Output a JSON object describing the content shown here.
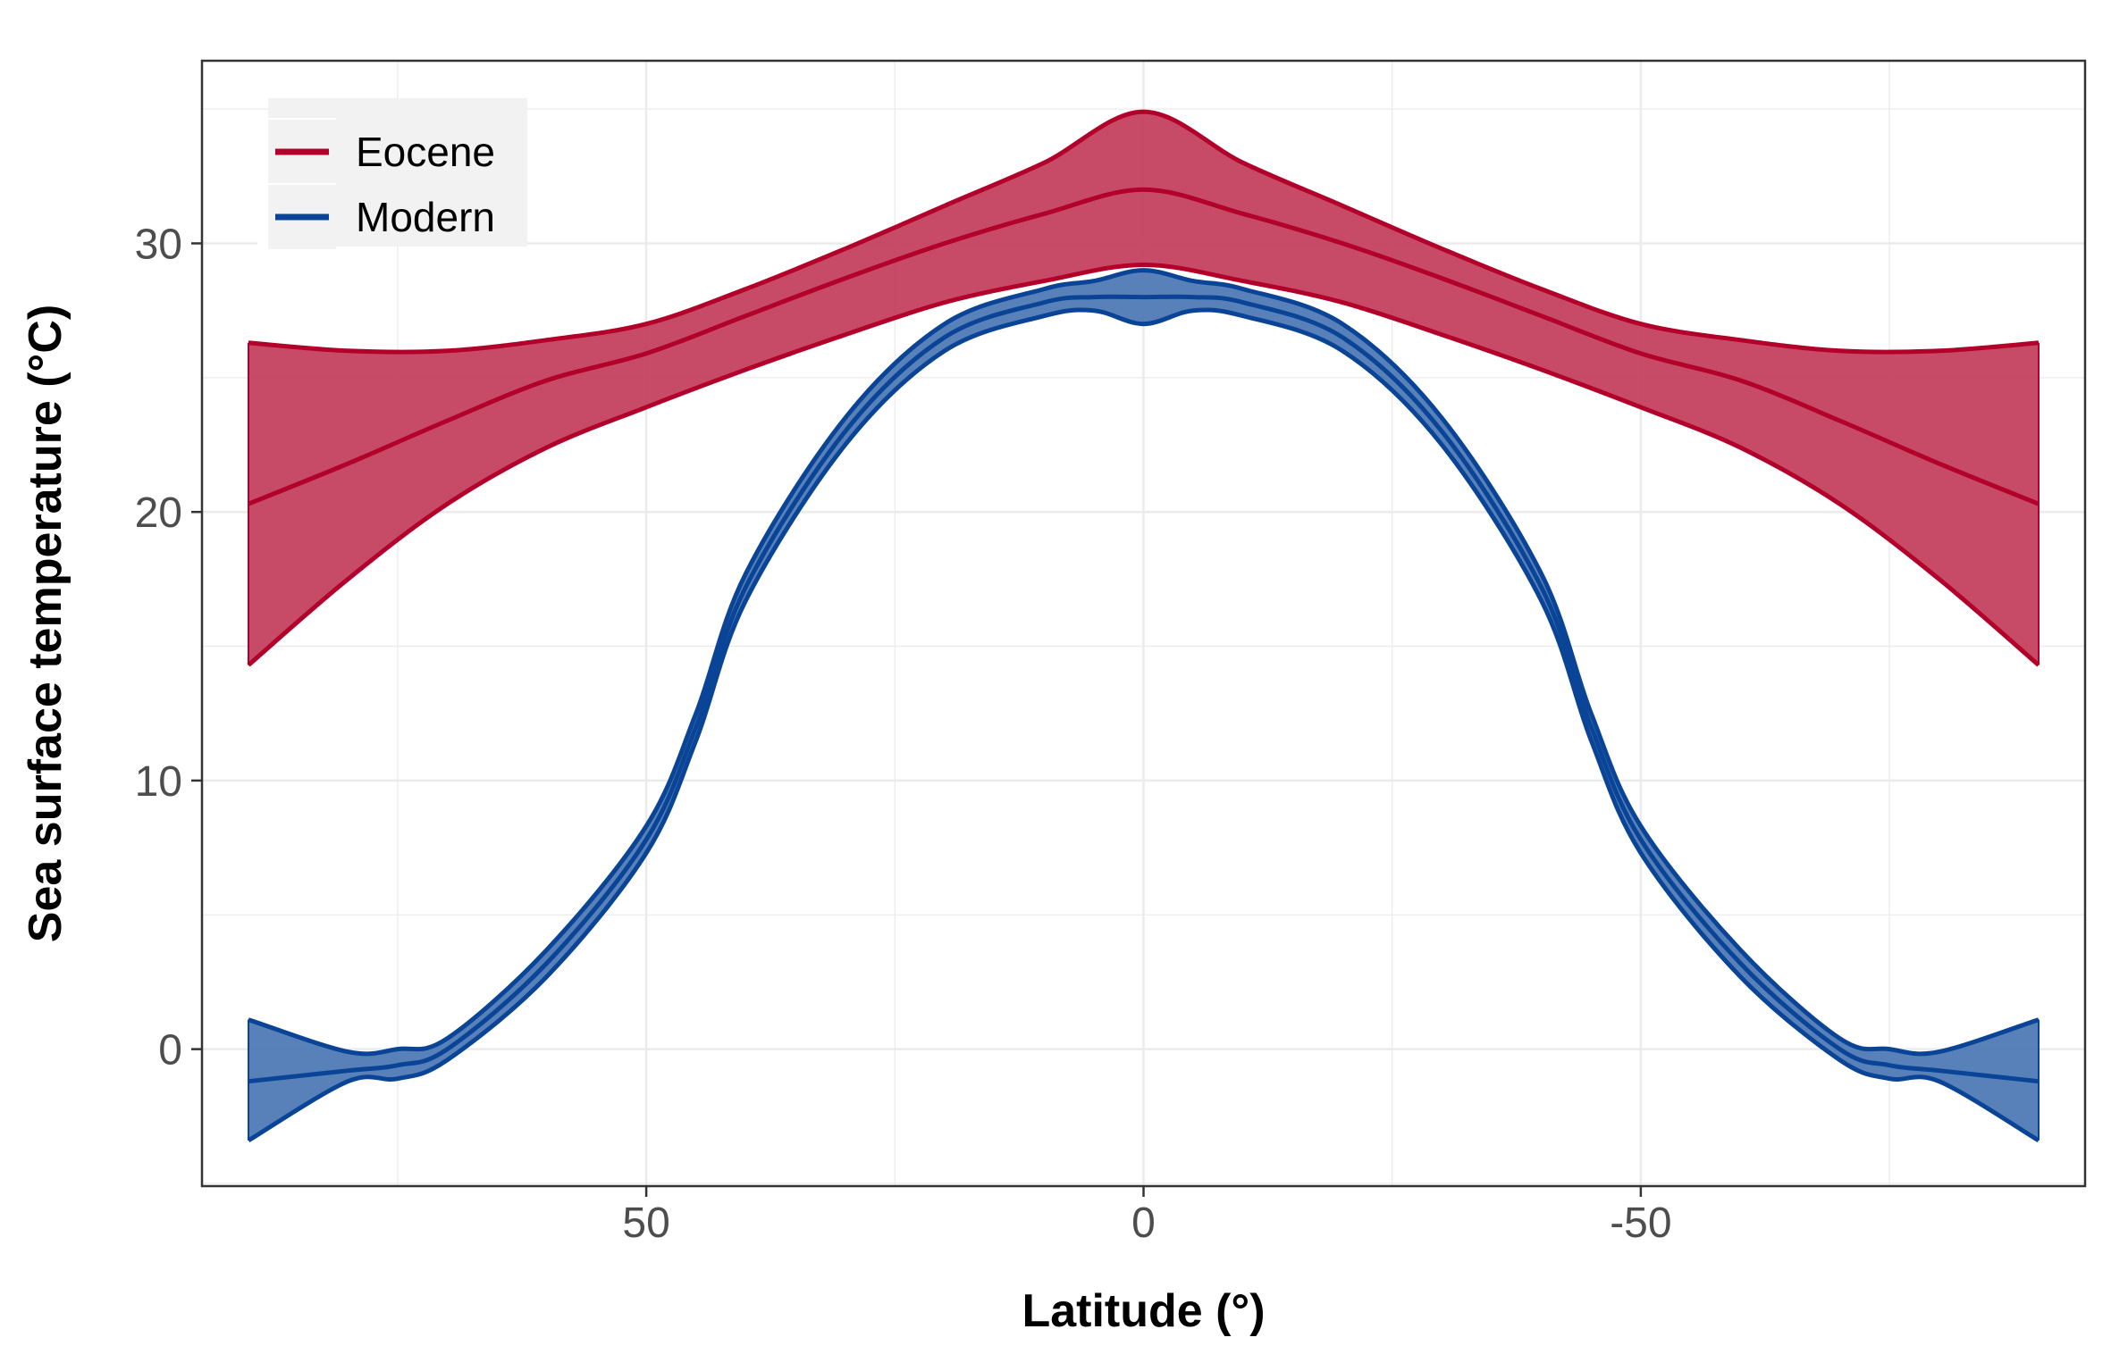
{
  "chart_data": {
    "type": "area",
    "xlabel": "Latitude (°)",
    "ylabel": "Sea surface temperature (°C)",
    "xlim": [
      90,
      -90
    ],
    "ylim": [
      -5.1,
      36.8
    ],
    "x_ticks": [
      50,
      0,
      -50
    ],
    "y_ticks": [
      0,
      10,
      20,
      30
    ],
    "grid": true,
    "legend_position": "top-left",
    "series": [
      {
        "name": "Eocene",
        "color": "#b2002b",
        "fill_color": "#c23c5a",
        "x": [
          90,
          80,
          70,
          60,
          50,
          40,
          30,
          20,
          10,
          0,
          -10,
          -20,
          -30,
          -40,
          -50,
          -60,
          -70,
          -80,
          -90
        ],
        "mean": [
          20.3,
          21.8,
          23.4,
          24.9,
          25.9,
          27.3,
          28.7,
          30.0,
          31.1,
          32.0,
          31.1,
          30.0,
          28.7,
          27.3,
          25.9,
          24.9,
          23.4,
          21.8,
          20.3
        ],
        "upper": [
          26.3,
          26.0,
          26.0,
          26.4,
          27.0,
          28.3,
          29.8,
          31.4,
          33.0,
          34.9,
          33.0,
          31.4,
          29.8,
          28.3,
          27.0,
          26.4,
          26.0,
          26.0,
          26.3
        ],
        "lower": [
          14.3,
          17.5,
          20.3,
          22.4,
          23.9,
          25.3,
          26.6,
          27.8,
          28.6,
          29.2,
          28.6,
          27.8,
          26.6,
          25.3,
          23.9,
          22.4,
          20.3,
          17.5,
          14.3
        ]
      },
      {
        "name": "Modern",
        "color": "#0a4496",
        "fill_color": "#4a76b4",
        "x": [
          90,
          80,
          75,
          70,
          60,
          50,
          45,
          40,
          30,
          20,
          10,
          5,
          0,
          -5,
          -10,
          -20,
          -30,
          -40,
          -45,
          -50,
          -60,
          -70,
          -75,
          -80,
          -90
        ],
        "mean": [
          -1.2,
          -0.8,
          -0.6,
          0.0,
          3.2,
          7.8,
          12.0,
          17.2,
          23.0,
          26.5,
          27.8,
          28.0,
          28.0,
          28.0,
          27.8,
          26.5,
          23.0,
          17.2,
          12.0,
          7.8,
          3.2,
          0.0,
          -0.6,
          -0.8,
          -1.2
        ],
        "upper": [
          1.1,
          -0.1,
          0.0,
          0.4,
          3.7,
          8.3,
          12.5,
          17.7,
          23.5,
          27.0,
          28.3,
          28.6,
          29.0,
          28.6,
          28.3,
          27.0,
          23.5,
          17.7,
          12.5,
          8.3,
          3.7,
          0.4,
          0.0,
          -0.1,
          1.1
        ],
        "lower": [
          -3.4,
          -1.2,
          -1.1,
          -0.4,
          2.7,
          7.3,
          11.5,
          16.7,
          22.5,
          26.0,
          27.3,
          27.5,
          27.0,
          27.5,
          27.3,
          26.0,
          22.5,
          16.7,
          11.5,
          7.3,
          2.7,
          -0.4,
          -1.1,
          -1.2,
          -3.4
        ]
      }
    ]
  }
}
